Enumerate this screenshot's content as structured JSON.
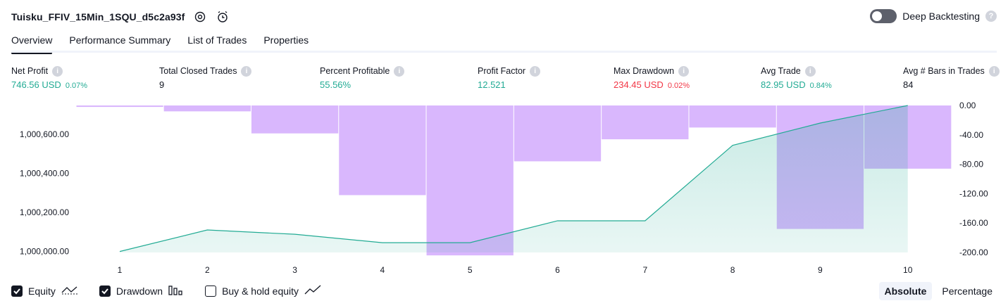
{
  "header": {
    "strategy_name": "Tuisku_FFIV_15Min_1SQU_d5c2a93f",
    "settings_icon": "gear-icon",
    "alert_icon": "alarm-clock-plus-icon",
    "deep_backtesting_label": "Deep Backtesting",
    "deep_backtesting_enabled": false,
    "help_glyph": "?"
  },
  "tabs": [
    {
      "label": "Overview",
      "active": true
    },
    {
      "label": "Performance Summary",
      "active": false
    },
    {
      "label": "List of Trades",
      "active": false
    },
    {
      "label": "Properties",
      "active": false
    }
  ],
  "metrics": [
    {
      "label": "Net Profit",
      "value": "746.56 USD",
      "sub": "0.07%",
      "tone": "pos"
    },
    {
      "label": "Total Closed Trades",
      "value": "9",
      "sub": "",
      "tone": "neutral"
    },
    {
      "label": "Percent Profitable",
      "value": "55.56%",
      "sub": "",
      "tone": "pos"
    },
    {
      "label": "Profit Factor",
      "value": "12.521",
      "sub": "",
      "tone": "pos"
    },
    {
      "label": "Max Drawdown",
      "value": "234.45 USD",
      "sub": "0.02%",
      "tone": "neg"
    },
    {
      "label": "Avg Trade",
      "value": "82.95 USD",
      "sub": "0.84%",
      "tone": "pos"
    },
    {
      "label": "Avg # Bars in Trades",
      "value": "84",
      "sub": "",
      "tone": "neutral"
    }
  ],
  "chart_data": {
    "type": "line",
    "x": [
      1,
      2,
      3,
      4,
      5,
      6,
      7,
      8,
      9,
      10
    ],
    "series": [
      {
        "name": "Equity",
        "type": "area",
        "color": "#22ab94",
        "values": [
          1000000,
          1000110,
          1000088,
          1000045,
          1000045,
          1000157,
          1000157,
          1000543,
          1000657,
          1000747
        ]
      },
      {
        "name": "Drawdown",
        "type": "bar",
        "color": "#d9b7fd",
        "values": [
          -2,
          -8,
          -38,
          -122,
          -204,
          -76,
          -46,
          -30,
          -168,
          -86
        ]
      }
    ],
    "left_axis": {
      "ticks": [
        1000000,
        1000200,
        1000400,
        1000600
      ],
      "tick_labels": [
        "1,000,000.00",
        "1,000,200.00",
        "1,000,400.00",
        "1,000,600.00"
      ],
      "range": [
        999995,
        1000747
      ]
    },
    "right_axis": {
      "ticks": [
        0,
        -40,
        -80,
        -120,
        -160,
        -200
      ],
      "tick_labels": [
        "0.00",
        "-40.00",
        "-80.00",
        "-120.00",
        "-160.00",
        "-200.00"
      ],
      "range": [
        -200,
        0
      ]
    },
    "x_tick_labels": [
      "1",
      "2",
      "3",
      "4",
      "5",
      "6",
      "7",
      "8",
      "9",
      "10"
    ]
  },
  "legend": {
    "items": [
      {
        "label": "Equity",
        "checked": true,
        "icon": "equity-line-icon"
      },
      {
        "label": "Drawdown",
        "checked": true,
        "icon": "drawdown-bars-icon"
      },
      {
        "label": "Buy & hold equity",
        "checked": false,
        "icon": "buy-hold-line-icon"
      }
    ]
  },
  "scale": {
    "absolute_label": "Absolute",
    "percentage_label": "Percentage",
    "active": "absolute"
  }
}
